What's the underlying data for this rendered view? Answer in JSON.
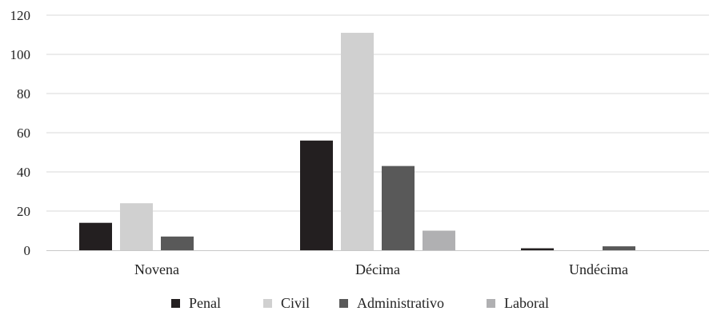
{
  "chart_data": {
    "type": "bar",
    "categories": [
      "Novena",
      "Décima",
      "Undécima"
    ],
    "series": [
      {
        "name": "Penal",
        "values": [
          14,
          56,
          1
        ],
        "color": "#231f20"
      },
      {
        "name": "Civil",
        "values": [
          24,
          111,
          0
        ],
        "color": "#d0d0d0"
      },
      {
        "name": "Administrativo",
        "values": [
          7,
          43,
          2
        ],
        "color": "#595959"
      },
      {
        "name": "Laboral",
        "values": [
          0,
          10,
          0
        ],
        "color": "#b0b0b2"
      }
    ],
    "title": "",
    "xlabel": "",
    "ylabel": "",
    "ylim": [
      0,
      120
    ],
    "yticks": [
      0,
      20,
      40,
      60,
      80,
      100,
      120
    ],
    "grid": true,
    "legend_position": "bottom"
  }
}
